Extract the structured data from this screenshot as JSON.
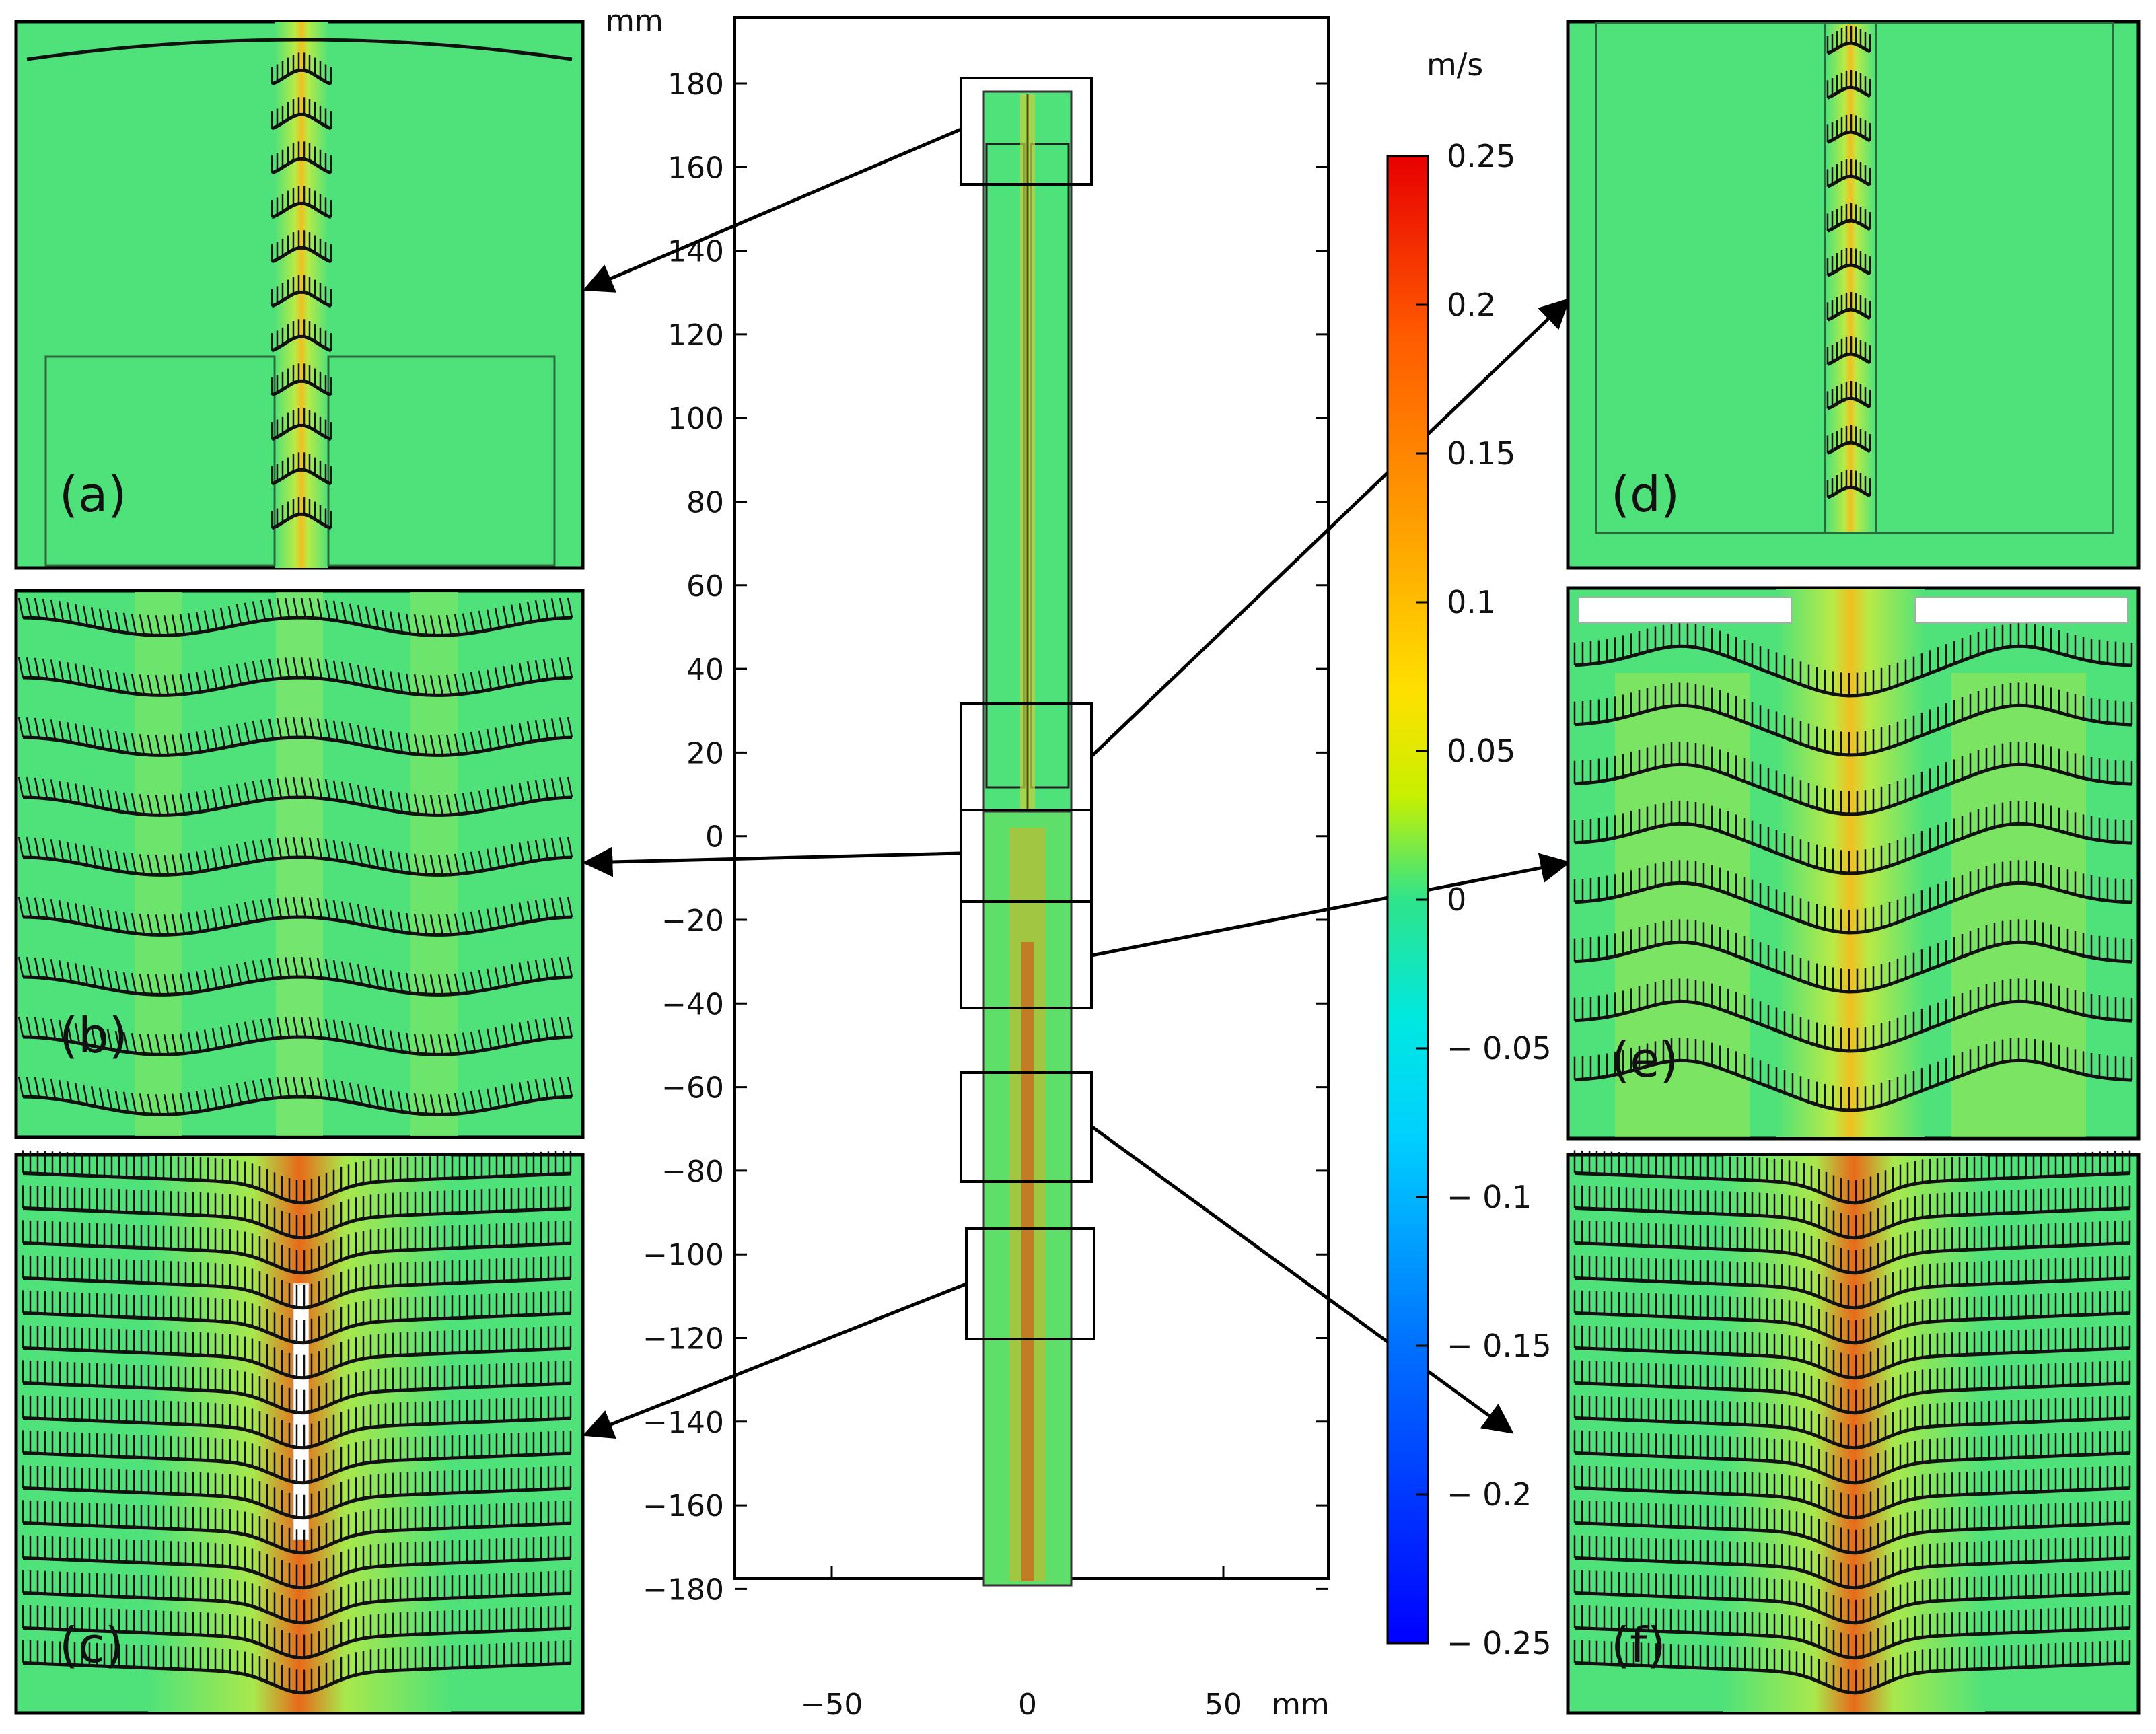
{
  "figure": {
    "units": {
      "axis": "mm",
      "colorbar": "m/s"
    },
    "axes": {
      "y_ticks": [
        "180",
        "160",
        "140",
        "120",
        "100",
        "80",
        "60",
        "40",
        "20",
        "0",
        "−20",
        "−40",
        "−60",
        "−80",
        "−100",
        "−120",
        "−140",
        "−160",
        "−180"
      ],
      "x_ticks": [
        "−50",
        "0",
        "50"
      ]
    },
    "colorbar": {
      "ticks": [
        "0.25",
        "0.2",
        "0.15",
        "0.1",
        "0.05",
        "0",
        "− 0.05",
        "− 0.1",
        "− 0.15",
        "− 0.2",
        "− 0.25"
      ],
      "colors": [
        "#ff1a00",
        "#ff7a00",
        "#ffd400",
        "#c8f000",
        "#46e86a",
        "#1ce6b4",
        "#00e6ff",
        "#0090ff",
        "#0040ff",
        "#0000ff"
      ]
    },
    "field_color": "#4fe27a",
    "panels": [
      {
        "id": "a",
        "label": "(a)"
      },
      {
        "id": "b",
        "label": "(b)"
      },
      {
        "id": "c",
        "label": "(c)"
      },
      {
        "id": "d",
        "label": "(d)"
      },
      {
        "id": "e",
        "label": "(e)"
      },
      {
        "id": "f",
        "label": "(f)"
      }
    ]
  }
}
